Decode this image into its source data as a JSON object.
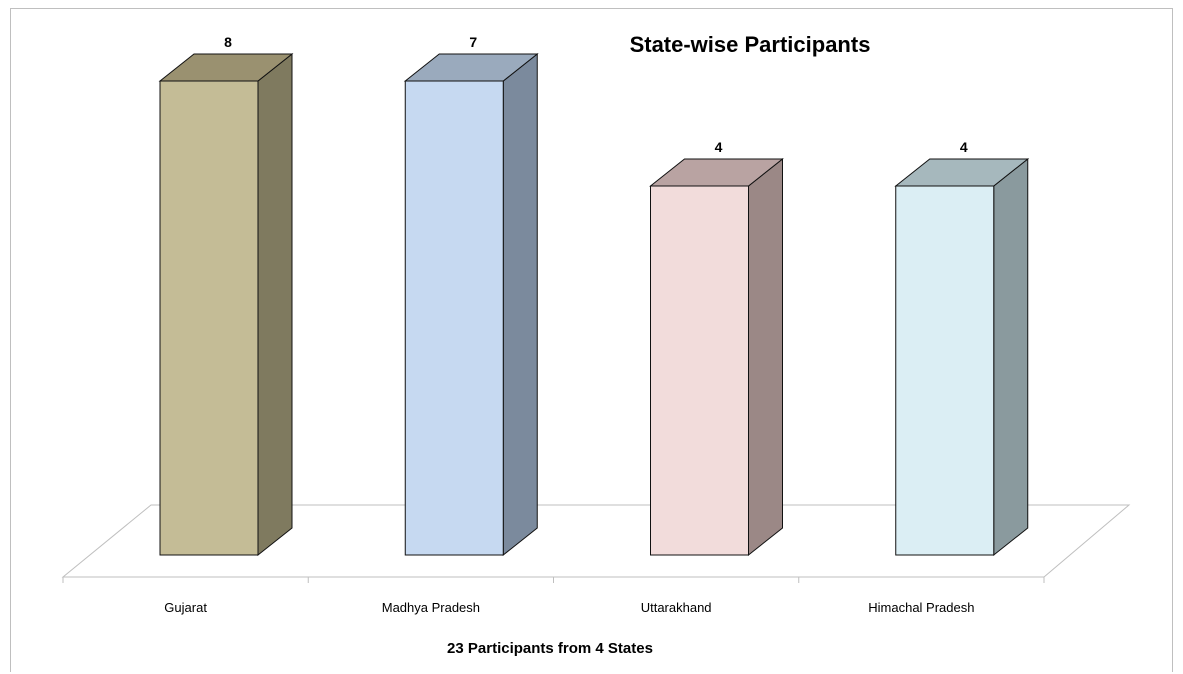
{
  "chart_data": {
    "type": "bar",
    "title": "State-wise Participants",
    "xlabel": "23 Participants from 4 States",
    "ylabel": "",
    "categories": [
      "Gujarat",
      "Madhya Pradesh",
      "Uttarakhand",
      "Himachal Pradesh"
    ],
    "values": [
      8,
      7,
      4,
      4
    ],
    "data_labels": [
      "8",
      "7",
      "4",
      "4"
    ],
    "grid": false,
    "legend": "none",
    "style": "3d-column",
    "colors": [
      {
        "front": "#c4bc96",
        "side": "#7f7a5f",
        "top": "#9a9170"
      },
      {
        "front": "#c6d9f1",
        "side": "#7b8a9d",
        "top": "#9aaabd"
      },
      {
        "front": "#f2dcdb",
        "side": "#9b8886",
        "top": "#b9a3a2"
      },
      {
        "front": "#dbeef4",
        "side": "#8a9a9e",
        "top": "#a6b8bd"
      }
    ]
  }
}
